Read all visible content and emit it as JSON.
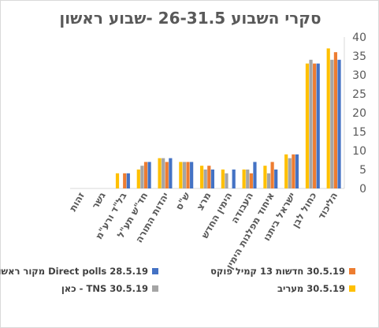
{
  "chart_data": {
    "type": "bar",
    "title": "סקרי השבוע 26-31.5 -שבוע ראשון",
    "xlabel": "",
    "ylabel": "",
    "ylim": [
      0,
      40
    ],
    "y_ticks": [
      0,
      5,
      10,
      15,
      20,
      25,
      30,
      35,
      40
    ],
    "grid": false,
    "legend_position": "bottom",
    "axis_direction": "rtl",
    "categories": [
      "הליכוד",
      "כחול לבן",
      "ישראל ביתנו",
      "איחוד מפלגות הימין",
      "העבודה",
      "הימין החדש",
      "מרצ",
      "ש\"ס",
      "יהדות התורה",
      "חד\"ש תע\"ל",
      "בל\"ד ורע\"מ",
      "גשר",
      "זהות"
    ],
    "series": [
      {
        "name": "30.5.19 מעריב",
        "color": "#FFC000",
        "values": [
          37,
          33,
          9,
          6,
          5,
          5,
          6,
          7,
          8,
          5,
          4,
          0,
          0
        ]
      },
      {
        "name": "30.5.19 TNS - כאן",
        "color": "#A5A5A5",
        "values": [
          34,
          34,
          8,
          4,
          5,
          4,
          5,
          7,
          8,
          6,
          0,
          0,
          0
        ]
      },
      {
        "name": "30.5.19 חדשות 13 קמיל פוקס",
        "color": "#ED7D31",
        "values": [
          36,
          33,
          9,
          7,
          4,
          0,
          6,
          7,
          7,
          7,
          4,
          0,
          0
        ]
      },
      {
        "name": "28.5.19 Direct polls מקור ראשון",
        "color": "#4472C4",
        "values": [
          34,
          33,
          9,
          5,
          7,
          5,
          5,
          7,
          8,
          7,
          4,
          0,
          0
        ]
      }
    ]
  }
}
